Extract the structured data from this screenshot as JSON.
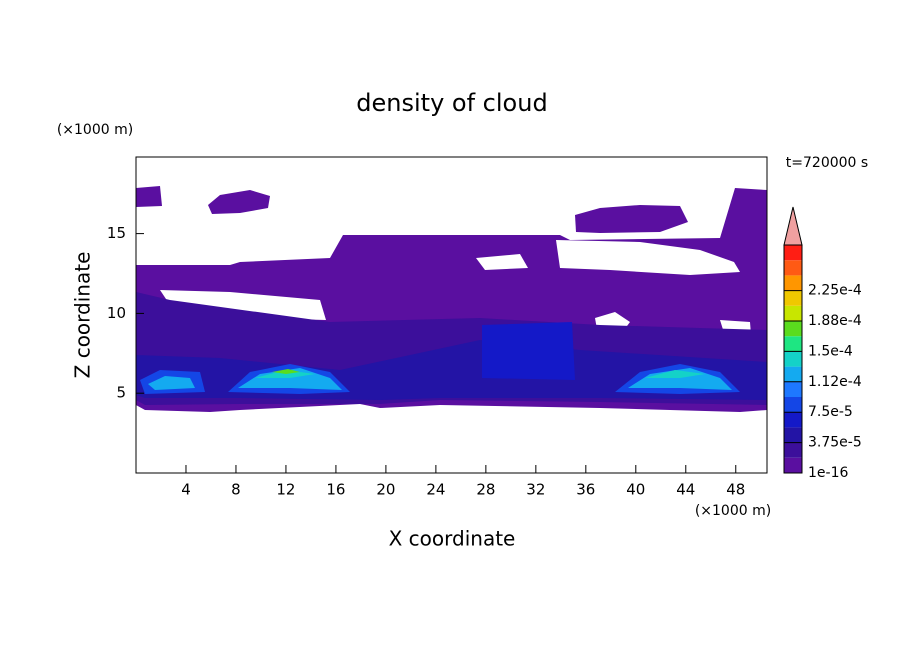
{
  "chart_data": {
    "type": "contour",
    "title": "density of cloud",
    "time_label": "t=720000 s",
    "x_label": "X coordinate",
    "y_label": "Z coordinate",
    "x_unit": "(×1000 m)",
    "y_unit": "(×1000 m)",
    "xlim": [
      0,
      50.5
    ],
    "ylim": [
      0,
      19.8
    ],
    "xticks": [
      4,
      8,
      12,
      16,
      20,
      24,
      28,
      32,
      36,
      40,
      44,
      48
    ],
    "yticks": [
      5,
      10,
      15
    ],
    "colorbar": {
      "levels": [
        1e-16,
        {
          "value": 3.75e-05,
          "label": "3.75e-5"
        },
        {
          "value": 7.5e-05,
          "label": "7.5e-5"
        },
        {
          "value": 0.000112,
          "label": "1.12e-4"
        },
        {
          "value": 0.00015,
          "label": "1.5e-4"
        },
        {
          "value": 0.000188,
          "label": "1.88e-4"
        },
        {
          "value": 0.000225,
          "label": "2.25e-4"
        }
      ],
      "colors": [
        "#5a0fa0",
        "#3c0f9b",
        "#2314a5",
        "#1419c8",
        "#1446e6",
        "#1e78ff",
        "#14aaf0",
        "#14d2c8",
        "#1ee682",
        "#5adc1e",
        "#c8e600",
        "#f0c800",
        "#ff9600",
        "#ff5a14",
        "#ff1e14"
      ],
      "extend_color": "#f0a0a0"
    }
  }
}
